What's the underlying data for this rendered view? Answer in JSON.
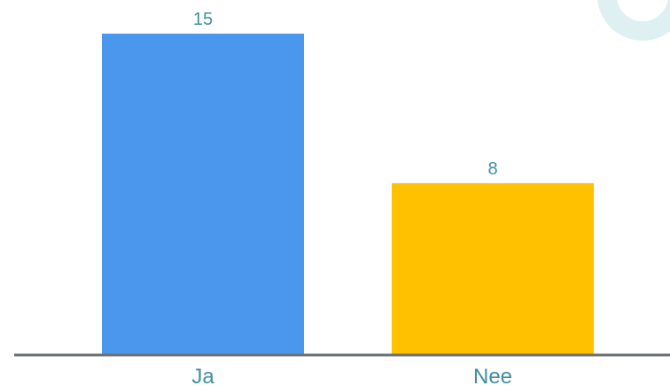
{
  "chart_data": {
    "type": "bar",
    "categories": [
      "Ja",
      "Nee"
    ],
    "values": [
      15,
      8
    ],
    "colors": [
      "#4c97ee",
      "#ffc100"
    ],
    "data_label_color": "#3f8ea0",
    "axis_color": "#6b6f73",
    "decoration_color": "#dff0f3",
    "ylim": [
      0,
      15
    ],
    "grid": false,
    "legend": "none",
    "title": "",
    "xlabel": "",
    "ylabel": ""
  }
}
